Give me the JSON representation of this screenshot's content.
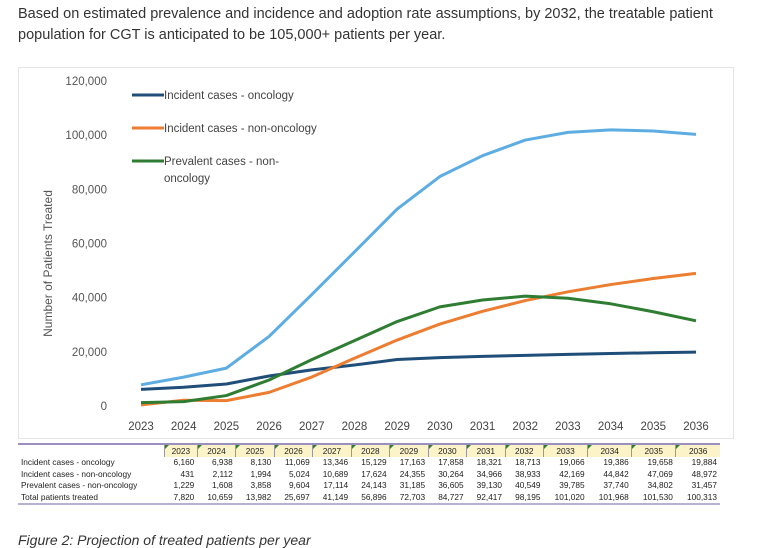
{
  "intro": "Based on estimated prevalence and incidence and adoption rate assumptions, by 2032, the treatable patient population for CGT is anticipated to be 105,000+ patients per year.",
  "caption": "Figure 2: Projection of treated patients per year",
  "chart_data": {
    "type": "line",
    "title": "",
    "xlabel": "",
    "ylabel": "Number of Patients Treated",
    "ylim": [
      0,
      120000
    ],
    "yticks": [
      0,
      20000,
      40000,
      60000,
      80000,
      100000,
      120000
    ],
    "ytick_labels": [
      "0",
      "20,000",
      "40,000",
      "60,000",
      "80,000",
      "100,000",
      "120,000"
    ],
    "x": [
      "2023",
      "2024",
      "2025",
      "2026",
      "2027",
      "2028",
      "2029",
      "2030",
      "2031",
      "2032",
      "2033",
      "2034",
      "2035",
      "2036"
    ],
    "legend_placement": "top-left",
    "series": [
      {
        "name": "Incident cases - oncology",
        "color": "#1f4e79",
        "legend": true,
        "values": [
          6160,
          6938,
          8130,
          11069,
          13346,
          15129,
          17163,
          17858,
          18321,
          18713,
          19066,
          19386,
          19658,
          19884
        ]
      },
      {
        "name": "Incident cases - non-oncology",
        "color": "#ed7d31",
        "legend": true,
        "values": [
          431,
          2112,
          1994,
          5024,
          10689,
          17624,
          24355,
          30264,
          34966,
          38933,
          42169,
          44842,
          47069,
          48972
        ]
      },
      {
        "name": "Prevalent cases - non-oncology",
        "color": "#2e7d32",
        "legend": true,
        "values": [
          1229,
          1608,
          3858,
          9604,
          17114,
          24143,
          31185,
          36605,
          39130,
          40549,
          39785,
          37740,
          34802,
          31457
        ]
      },
      {
        "name": "Total patients treated",
        "color": "#5dade2",
        "legend": false,
        "values": [
          7820,
          10659,
          13982,
          25697,
          41149,
          56896,
          72703,
          84727,
          92417,
          98195,
          101020,
          101968,
          101530,
          100313
        ]
      }
    ],
    "legend_labels": [
      "Incident cases - oncology",
      "Incident cases - non-oncology",
      "Prevalent cases - non-\noncology"
    ]
  },
  "table": {
    "rows": [
      {
        "label": "Incident cases - oncology",
        "values": [
          "6,160",
          "6,938",
          "8,130",
          "11,069",
          "13,346",
          "15,129",
          "17,163",
          "17,858",
          "18,321",
          "18,713",
          "19,066",
          "19,386",
          "19,658",
          "19,884"
        ]
      },
      {
        "label": "Incident cases - non-oncology",
        "values": [
          "431",
          "2,112",
          "1,994",
          "5,024",
          "10,689",
          "17,624",
          "24,355",
          "30,264",
          "34,966",
          "38,933",
          "42,169",
          "44,842",
          "47,069",
          "48,972"
        ]
      },
      {
        "label": "Prevalent cases - non-oncology",
        "values": [
          "1,229",
          "1,608",
          "3,858",
          "9,604",
          "17,114",
          "24,143",
          "31,185",
          "36,605",
          "39,130",
          "40,549",
          "39,785",
          "37,740",
          "34,802",
          "31,457"
        ]
      },
      {
        "label": "Total patients treated",
        "values": [
          "7,820",
          "10,659",
          "13,982",
          "25,697",
          "41,149",
          "56,896",
          "72,703",
          "84,727",
          "92,417",
          "98,195",
          "101,020",
          "101,968",
          "101,530",
          "100,313"
        ]
      }
    ]
  }
}
